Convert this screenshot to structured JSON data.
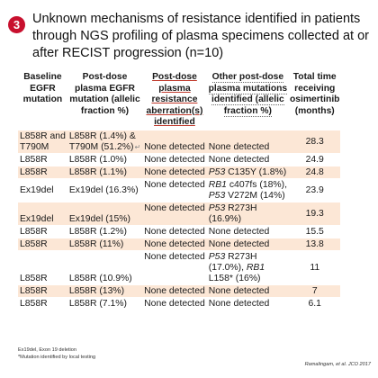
{
  "slide": {
    "badge_number": "3",
    "title": "Unknown mechanisms of resistance identified in patients through NGS profiling of plasma specimens collected at or after RECIST progression (n=10)",
    "badge_color": "#c8102e",
    "highlight_color": "#fce7d6"
  },
  "table": {
    "headers": [
      "Baseline EGFR mutation",
      "Post-dose plasma EGFR mutation (allelic fraction %)",
      "Post-dose plasma resistance aberration(s) identified",
      "Other post-dose plasma mutations identified (allelic fraction %)",
      "Total time receiving osimertinib (months)"
    ],
    "rows": [
      {
        "baseline": "L858R and T790M",
        "postdose": "L858R (1.4%) & T790M (51.2%)",
        "resistance": "None detected",
        "other": "None detected",
        "months": "28.3",
        "highlight": true
      },
      {
        "baseline": "L858R",
        "postdose": "L858R (1.0%)",
        "resistance": "None detected",
        "other": "None detected",
        "months": "24.9",
        "highlight": false
      },
      {
        "baseline": "L858R",
        "postdose": "L858R (1.1%)",
        "resistance": "None detected",
        "other": "P53 C135Y (1.8%)",
        "months": "24.8",
        "highlight": true
      },
      {
        "baseline": "Ex19del",
        "postdose": "Ex19del (16.3%)",
        "resistance": "None detected",
        "other": "RB1 c407fs (18%), P53 V272M (14%)",
        "months": "23.9",
        "highlight": false
      },
      {
        "baseline": "Ex19del",
        "postdose": "Ex19del (15%)",
        "resistance": "None detected",
        "other": "P53 R273H (16.9%)",
        "months": "19.3",
        "highlight": true
      },
      {
        "baseline": "L858R",
        "postdose": "L858R (1.2%)",
        "resistance": "None detected",
        "other": "None detected",
        "months": "15.5",
        "highlight": false
      },
      {
        "baseline": "L858R",
        "postdose": "L858R (11%)",
        "resistance": "None detected",
        "other": "None detected",
        "months": "13.8",
        "highlight": true
      },
      {
        "baseline": "L858R",
        "postdose": "L858R (10.9%)",
        "resistance": "None detected",
        "other": "P53 R273H (17.0%), RB1 L158* (16%)",
        "months": "11",
        "highlight": false
      },
      {
        "baseline": "L858R",
        "postdose": "L858R (13%)",
        "resistance": "None detected",
        "other": "None detected",
        "months": "7",
        "highlight": true
      },
      {
        "baseline": "L858R",
        "postdose": "L858R (7.1%)",
        "resistance": "None detected",
        "other": "None detected",
        "months": "6.1",
        "highlight": false
      }
    ]
  },
  "footnotes": {
    "line1": "Ex19del, Exon 19 deletion",
    "line2": "*Mutation identified by local testing"
  },
  "citation": "Ramalingam, et al. JCO 2017"
}
